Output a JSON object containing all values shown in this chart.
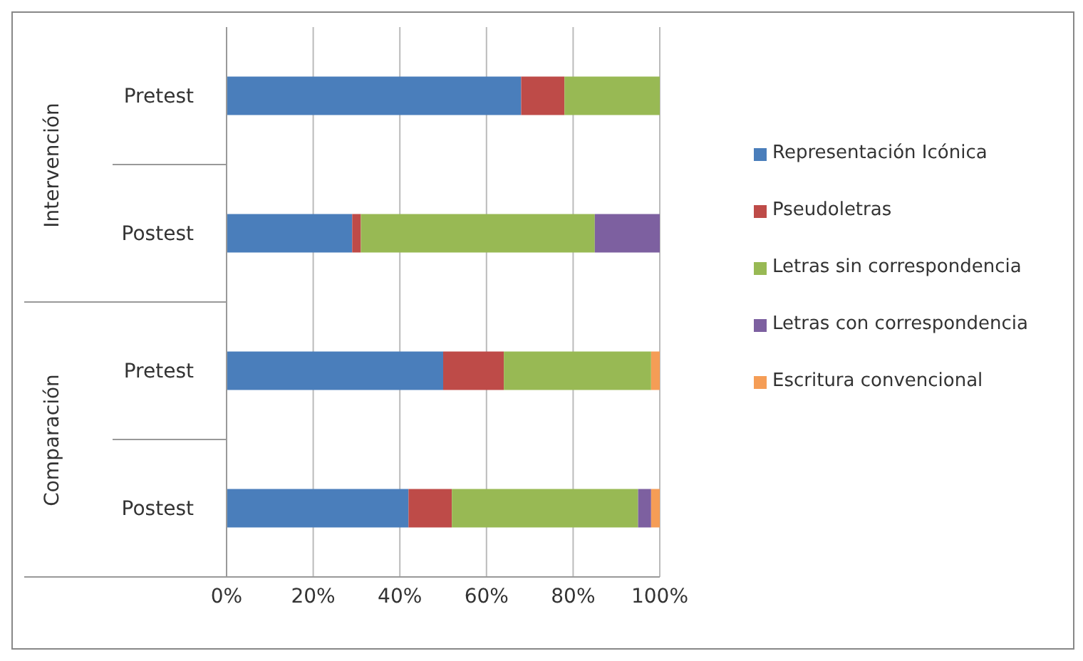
{
  "chart_data": {
    "type": "bar",
    "orientation": "horizontal",
    "stacked": true,
    "categories": [
      "Pretest",
      "Postest",
      "Pretest",
      "Postest"
    ],
    "annotations": [
      "Intervención",
      "Comparación"
    ],
    "series": [
      {
        "name": "Representación Icónica",
        "color": "#4a7ebb",
        "values": [
          68,
          29,
          50,
          42
        ]
      },
      {
        "name": "Pseudoletras",
        "color": "#be4b48",
        "values": [
          10,
          2,
          14,
          10
        ]
      },
      {
        "name": "Letras sin correspondencia",
        "color": "#98b954",
        "values": [
          22,
          54,
          34,
          43
        ]
      },
      {
        "name": "Letras con correspondencia",
        "color": "#7d60a0",
        "values": [
          null,
          15,
          null,
          3
        ]
      },
      {
        "name": "Escritura convencional",
        "color": "#f59d56",
        "values": [
          null,
          null,
          2,
          2
        ]
      }
    ],
    "xlim": [
      0,
      100
    ],
    "xticks": [
      {
        "value": 0,
        "label": "0%"
      },
      {
        "value": 20,
        "label": "20%"
      },
      {
        "value": 40,
        "label": "40%"
      },
      {
        "value": 60,
        "label": "60%"
      },
      {
        "value": 80,
        "label": "80%"
      },
      {
        "value": 100,
        "label": "100%"
      }
    ],
    "grid": "x",
    "legend": "right"
  }
}
